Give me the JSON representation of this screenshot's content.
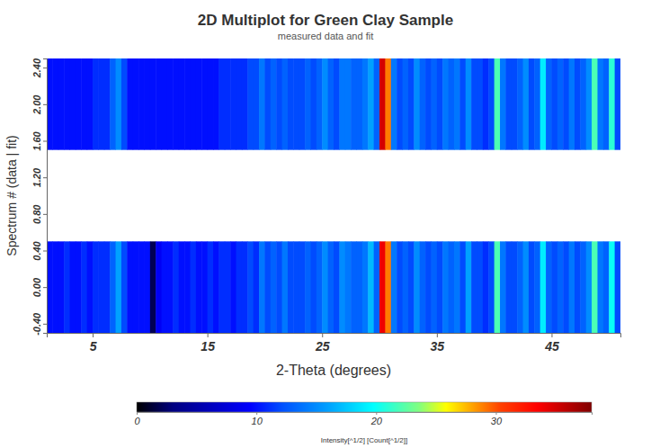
{
  "chart_data": {
    "type": "heatmap",
    "title": "2D Multiplot for Green Clay Sample",
    "subtitle": "measured data and fit",
    "x_label": "2-Theta (degrees)",
    "y_label": "Spectrum # (data | fit)",
    "x": [
      1.25,
      1.75,
      2.25,
      2.75,
      3.25,
      3.75,
      4.25,
      4.75,
      5.25,
      5.75,
      6.25,
      6.75,
      7.25,
      7.75,
      8.25,
      8.75,
      9.25,
      9.75,
      10.25,
      10.75,
      11.25,
      11.75,
      12.25,
      12.75,
      13.25,
      13.75,
      14.25,
      14.75,
      15.25,
      15.75,
      16.25,
      16.75,
      17.25,
      17.75,
      18.25,
      18.75,
      19.25,
      19.75,
      20.25,
      20.75,
      21.25,
      21.75,
      22.25,
      22.75,
      23.25,
      23.75,
      24.25,
      24.75,
      25.25,
      25.75,
      26.25,
      26.75,
      27.25,
      27.75,
      28.25,
      28.75,
      29.25,
      29.75,
      30.25,
      30.75,
      31.25,
      31.75,
      32.25,
      32.75,
      33.25,
      33.75,
      34.25,
      34.75,
      35.25,
      35.75,
      36.25,
      36.75,
      37.25,
      37.75,
      38.25,
      38.75,
      39.25,
      39.75,
      40.25,
      40.75,
      41.25,
      41.75,
      42.25,
      42.75,
      43.25,
      43.75,
      44.25,
      44.75,
      45.25,
      45.75,
      46.25,
      46.75,
      47.25,
      47.75,
      48.25,
      48.75,
      49.25,
      49.75,
      50.25,
      50.75
    ],
    "y_bins": [
      [
        -0.5,
        0.5
      ],
      [
        1.5,
        2.5
      ]
    ],
    "values": [
      [
        10,
        10,
        10,
        11,
        10,
        10,
        11,
        10,
        11,
        11,
        11,
        13,
        16,
        12,
        10,
        10,
        10,
        10,
        2,
        9,
        10,
        10,
        11,
        10,
        10,
        11,
        10,
        10,
        11,
        10,
        11,
        11,
        10,
        11,
        11,
        12,
        11,
        14,
        12,
        13,
        12,
        14,
        12,
        12,
        12,
        13,
        12,
        13,
        15,
        13,
        12,
        15,
        14,
        13,
        13,
        14,
        17,
        13,
        34,
        29,
        14,
        12,
        13,
        12,
        15,
        13,
        12,
        13,
        12,
        14,
        13,
        14,
        12,
        16,
        12,
        12,
        11,
        12,
        22,
        14,
        12,
        12,
        13,
        15,
        12,
        13,
        19,
        13,
        12,
        13,
        12,
        14,
        12,
        13,
        15,
        22,
        14,
        13,
        20,
        12
      ],
      [
        10,
        10,
        10,
        10,
        10,
        10,
        10,
        10,
        11,
        11,
        11,
        13,
        15,
        12,
        10,
        10,
        10,
        10,
        10,
        10,
        10,
        10,
        10,
        10,
        10,
        10,
        10,
        10,
        10,
        10,
        11,
        11,
        11,
        11,
        11,
        12,
        12,
        14,
        12,
        13,
        12,
        13,
        12,
        12,
        12,
        13,
        12,
        13,
        15,
        13,
        12,
        14,
        14,
        13,
        13,
        14,
        16,
        13,
        35,
        29,
        14,
        12,
        13,
        12,
        15,
        13,
        12,
        13,
        12,
        14,
        13,
        14,
        12,
        15,
        12,
        12,
        11,
        12,
        22,
        14,
        12,
        12,
        13,
        15,
        12,
        13,
        19,
        13,
        12,
        13,
        12,
        14,
        12,
        13,
        15,
        22,
        14,
        13,
        21,
        12
      ]
    ],
    "xlim": [
      1,
      51
    ],
    "ylim": [
      -0.5,
      2.5
    ],
    "xticks": [
      5,
      15,
      25,
      35,
      45
    ],
    "yticks": [
      {
        "value": -0.4,
        "label": "-0.40"
      },
      {
        "value": 0,
        "label": "0.00"
      },
      {
        "value": 0.4,
        "label": "0.40"
      },
      {
        "value": 0.8,
        "label": "0.80"
      },
      {
        "value": 1.2,
        "label": "1.20"
      },
      {
        "value": 1.6,
        "label": "1.60"
      },
      {
        "value": 2.0,
        "label": "2.00"
      },
      {
        "value": 2.4,
        "label": "2.40"
      }
    ],
    "colorbar": {
      "label": "Intensity[^1/2] [Count[^1/2]]",
      "range": [
        0,
        38
      ],
      "ticks": [
        0,
        10,
        20,
        30
      ]
    }
  }
}
